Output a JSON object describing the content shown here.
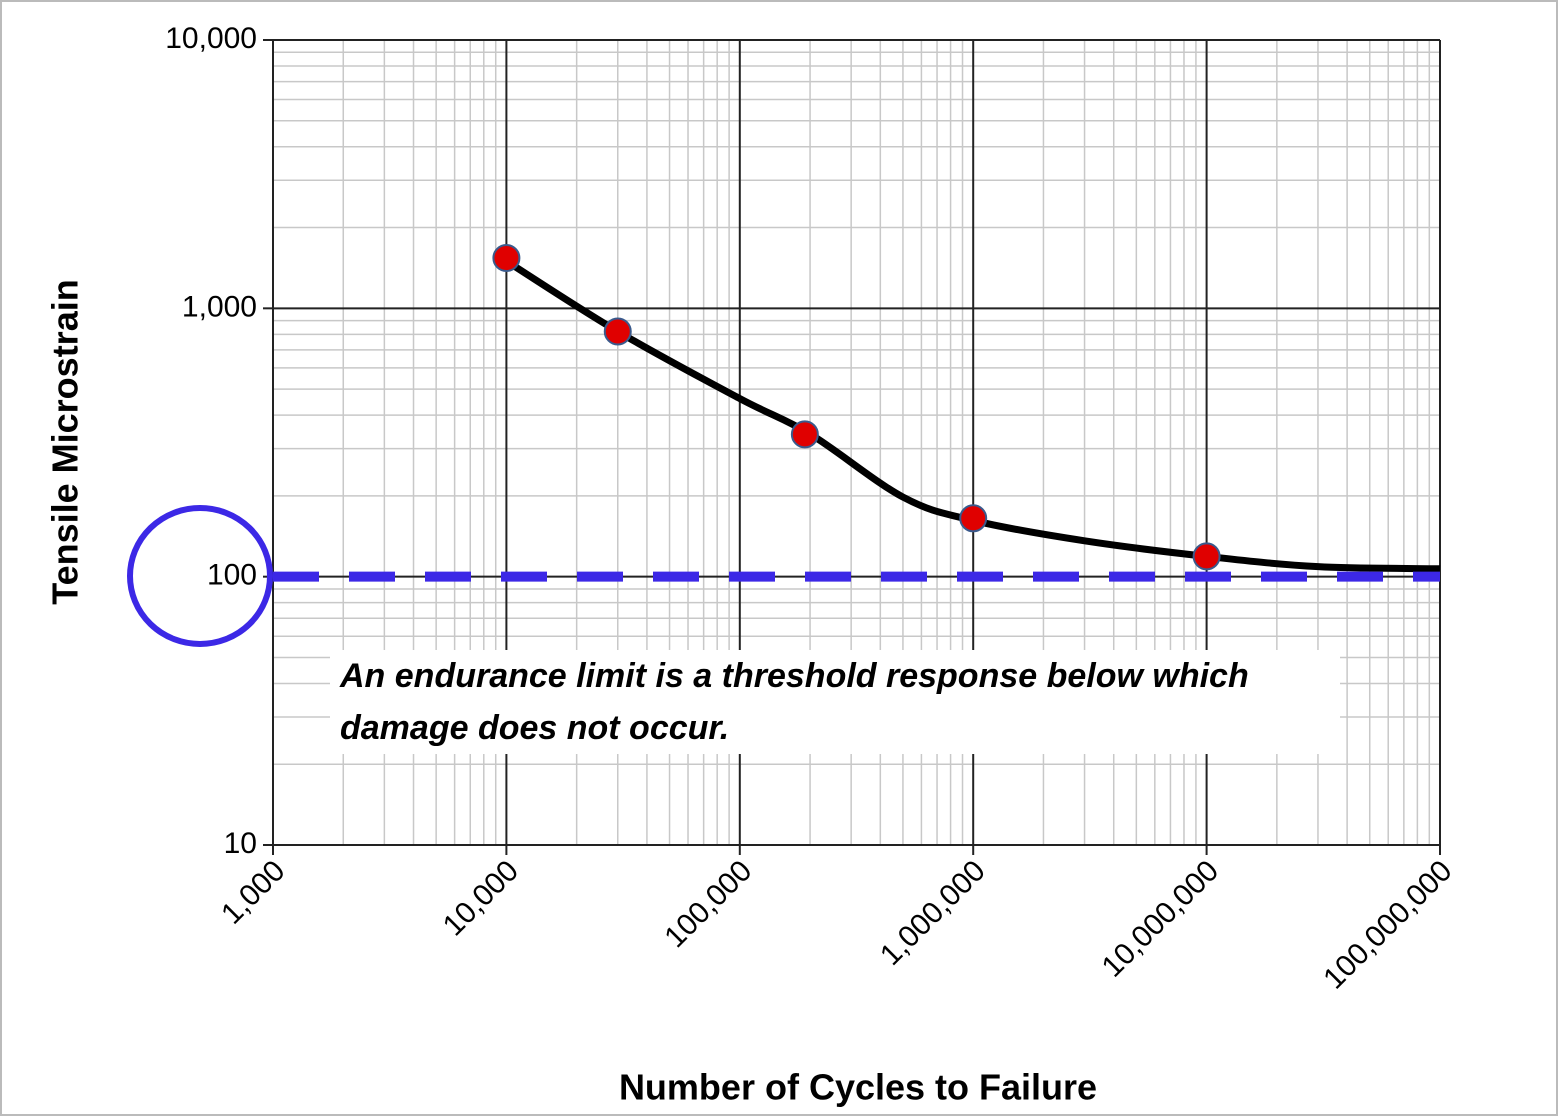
{
  "chart_data": {
    "type": "scatter",
    "xlabel": "Number of Cycles to Failure",
    "ylabel": "Tensile Microstrain",
    "annotation": "An endurance limit is a threshold response below which damage does not occur.",
    "xscale": "log",
    "yscale": "log",
    "grid": true,
    "minor_grid": true,
    "xlim": [
      1000,
      100000000
    ],
    "ylim": [
      10,
      10000
    ],
    "xticks": [
      {
        "value": 1000,
        "label": "1,000"
      },
      {
        "value": 10000,
        "label": "10,000"
      },
      {
        "value": 100000,
        "label": "100,000"
      },
      {
        "value": 1000000,
        "label": "1,000,000"
      },
      {
        "value": 10000000,
        "label": "10,000,000"
      },
      {
        "value": 100000000,
        "label": "100,000,000"
      }
    ],
    "yticks": [
      10,
      100,
      {
        "value": 1000,
        "label": "1,000"
      },
      {
        "value": 10000,
        "label": "10,000"
      }
    ],
    "series": [
      {
        "style": "line",
        "color": "#000000",
        "x": [
          10000,
          30000,
          100000,
          200000,
          500000,
          1000000,
          3000000,
          10000000,
          30000000,
          100000000
        ],
        "values": [
          1500,
          820,
          461,
          340,
          198,
          162,
          136,
          119,
          109,
          107
        ]
      },
      {
        "style": "dashed",
        "color": "#3c28e6",
        "x": [
          1000,
          100000000
        ],
        "values": [
          100,
          100
        ]
      },
      {
        "style": "markers",
        "color": "#e00000",
        "edge": "#3a5a8c",
        "x": [
          10000,
          30000,
          190000,
          1000000,
          10000000
        ],
        "values": [
          1540,
          820,
          339,
          165,
          119
        ]
      }
    ]
  }
}
